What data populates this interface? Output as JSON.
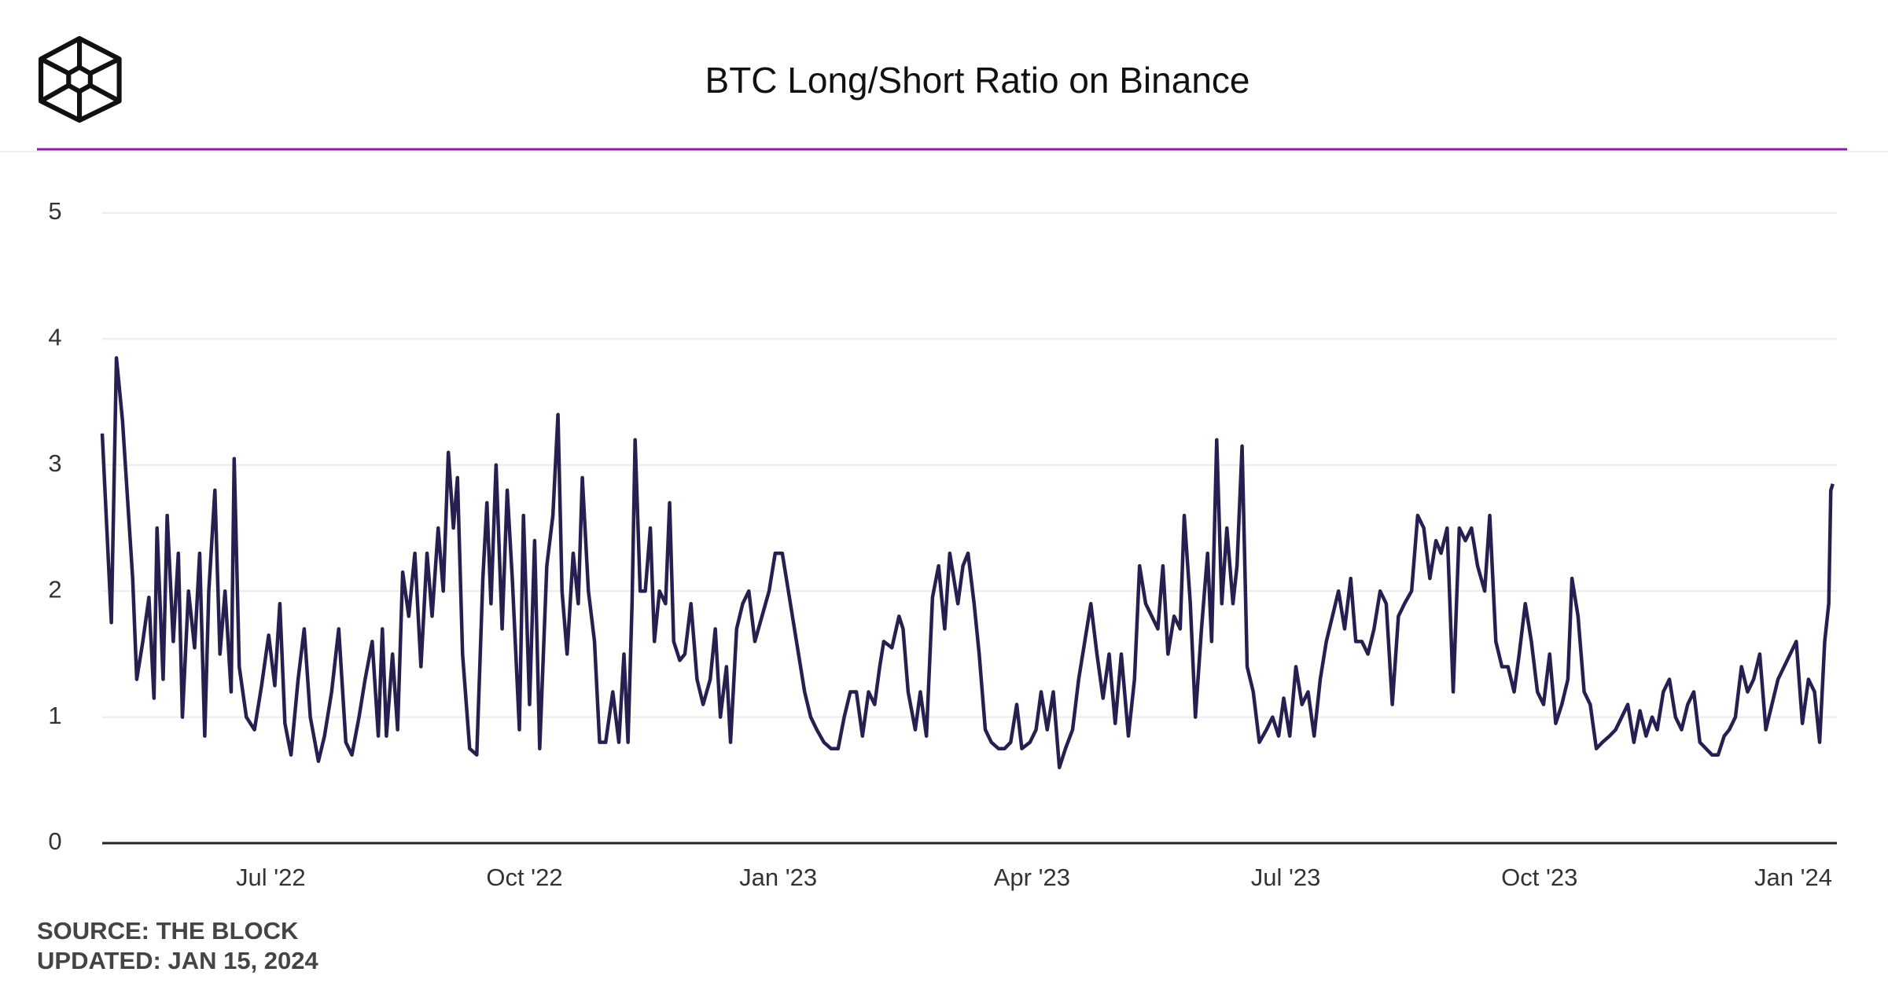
{
  "chart_data": {
    "type": "line",
    "title": "BTC Long/Short Ratio on Binance",
    "notes": [
      "SOURCE: THE BLOCK",
      "UPDATED: JAN 15, 2024"
    ],
    "color": "#25204f",
    "grid": true,
    "xlim": [
      2022.334,
      2024.043
    ],
    "xticks": [
      {
        "value": 2022.5,
        "label": "Jul '22"
      },
      {
        "value": 2022.75,
        "label": "Oct '22"
      },
      {
        "value": 2023.0,
        "label": "Jan '23"
      },
      {
        "value": 2023.25,
        "label": "Apr '23"
      },
      {
        "value": 2023.5,
        "label": "Jul '23"
      },
      {
        "value": 2023.75,
        "label": "Oct '23"
      },
      {
        "value": 2024.0,
        "label": "Jan '24"
      }
    ],
    "ylim": [
      0,
      5
    ],
    "yticks": [
      0,
      1,
      2,
      3,
      4,
      5
    ],
    "x": [
      2022.334,
      2022.343,
      2022.348,
      2022.354,
      2022.364,
      2022.368,
      2022.374,
      2022.38,
      2022.385,
      2022.388,
      2022.394,
      2022.398,
      2022.404,
      2022.409,
      2022.413,
      2022.419,
      2022.425,
      2022.43,
      2022.435,
      2022.439,
      2022.445,
      2022.45,
      2022.455,
      2022.461,
      2022.464,
      2022.469,
      2022.476,
      2022.484,
      2022.491,
      2022.498,
      2022.504,
      2022.509,
      2022.514,
      2022.52,
      2022.527,
      2022.533,
      2022.539,
      2022.547,
      2022.553,
      2022.56,
      2022.567,
      2022.574,
      2022.58,
      2022.587,
      2022.593,
      2022.6,
      2022.606,
      2022.61,
      2022.614,
      2022.62,
      2022.625,
      2022.63,
      2022.636,
      2022.642,
      2022.648,
      2022.654,
      2022.659,
      2022.665,
      2022.67,
      2022.675,
      2022.68,
      2022.684,
      2022.689,
      2022.696,
      2022.703,
      2022.709,
      2022.713,
      2022.717,
      2022.722,
      2022.728,
      2022.733,
      2022.738,
      2022.745,
      2022.749,
      2022.755,
      2022.76,
      2022.765,
      2022.772,
      2022.778,
      2022.783,
      2022.787,
      2022.792,
      2022.798,
      2022.803,
      2022.807,
      2022.813,
      2022.819,
      2022.824,
      2022.83,
      2022.837,
      2022.843,
      2022.848,
      2022.852,
      2022.856,
      2022.859,
      2022.864,
      2022.869,
      2022.874,
      2022.878,
      2022.883,
      2022.889,
      2022.893,
      2022.897,
      2022.903,
      2022.908,
      2022.914,
      2022.92,
      2022.926,
      2022.933,
      2022.938,
      2022.943,
      2022.949,
      2022.953,
      2022.959,
      2022.965,
      2022.971,
      2022.977,
      2022.984,
      2022.991,
      2022.997,
      2023.004,
      2023.01,
      2023.016,
      2023.02,
      2023.026,
      2023.032,
      2023.038,
      2023.045,
      2023.052,
      2023.059,
      2023.065,
      2023.071,
      2023.077,
      2023.083,
      2023.089,
      2023.095,
      2023.1,
      2023.104,
      2023.112,
      2023.119,
      2023.123,
      2023.128,
      2023.135,
      2023.14,
      2023.146,
      2023.152,
      2023.158,
      2023.164,
      2023.169,
      2023.177,
      2023.182,
      2023.187,
      2023.193,
      2023.198,
      2023.204,
      2023.21,
      2023.217,
      2023.223,
      2023.229,
      2023.235,
      2023.24,
      2023.248,
      2023.254,
      2023.259,
      2023.265,
      2023.271,
      2023.277,
      2023.283,
      2023.29,
      2023.296,
      2023.302,
      2023.308,
      2023.314,
      2023.32,
      2023.326,
      2023.332,
      2023.338,
      2023.345,
      2023.351,
      2023.356,
      2023.362,
      2023.368,
      2023.374,
      2023.379,
      2023.384,
      2023.39,
      2023.396,
      2023.4,
      2023.406,
      2023.411,
      2023.417,
      2023.423,
      2023.427,
      2023.432,
      2023.437,
      2023.442,
      2023.448,
      2023.452,
      2023.457,
      2023.462,
      2023.468,
      2023.474,
      2023.481,
      2023.487,
      2023.493,
      2023.498,
      2023.504,
      2023.51,
      2023.516,
      2023.522,
      2023.528,
      2023.534,
      2023.54,
      2023.546,
      2023.552,
      2023.558,
      2023.564,
      2023.569,
      2023.575,
      2023.581,
      2023.587,
      2023.593,
      2023.599,
      2023.605,
      2023.611,
      2023.617,
      2023.624,
      2023.63,
      2023.636,
      2023.642,
      2023.648,
      2023.653,
      2023.659,
      2023.665,
      2023.671,
      2023.677,
      2023.683,
      2023.689,
      2023.696,
      2023.701,
      2023.707,
      2023.713,
      2023.719,
      2023.725,
      2023.73,
      2023.736,
      2023.742,
      2023.748,
      2023.754,
      2023.76,
      2023.766,
      2023.772,
      2023.778,
      2023.782,
      2023.788,
      2023.794,
      2023.8,
      2023.806,
      2023.812,
      2023.819,
      2023.825,
      2023.831,
      2023.837,
      2023.843,
      2023.849,
      2023.855,
      2023.861,
      2023.866,
      2023.872,
      2023.878,
      2023.884,
      2023.89,
      2023.896,
      2023.902,
      2023.908,
      2023.914,
      2023.92,
      2023.926,
      2023.932,
      2023.937,
      2023.943,
      2023.949,
      2023.955,
      2023.961,
      2023.967,
      2023.973,
      2023.979,
      2023.985,
      2023.991,
      2023.997,
      2024.003,
      2024.009,
      2024.015,
      2024.021,
      2024.026,
      2024.031,
      2024.035,
      2024.037,
      2024.039
    ],
    "values": [
      3.25,
      1.75,
      3.85,
      3.35,
      2.1,
      1.3,
      1.6,
      1.95,
      1.15,
      2.5,
      1.3,
      2.6,
      1.6,
      2.3,
      1.0,
      2.0,
      1.55,
      2.3,
      0.85,
      2.0,
      2.8,
      1.5,
      2.0,
      1.2,
      3.05,
      1.4,
      1.0,
      0.9,
      1.25,
      1.65,
      1.25,
      1.9,
      0.95,
      0.7,
      1.3,
      1.7,
      1.0,
      0.65,
      0.85,
      1.2,
      1.7,
      0.8,
      0.7,
      1.0,
      1.3,
      1.6,
      0.85,
      1.7,
      0.85,
      1.5,
      0.9,
      2.15,
      1.8,
      2.3,
      1.4,
      2.3,
      1.8,
      2.5,
      2.0,
      3.1,
      2.5,
      2.9,
      1.5,
      0.75,
      0.7,
      2.1,
      2.7,
      1.9,
      3.0,
      1.7,
      2.8,
      2.1,
      0.9,
      2.6,
      1.1,
      2.4,
      0.75,
      2.2,
      2.6,
      3.4,
      2.0,
      1.5,
      2.3,
      1.9,
      2.9,
      2.0,
      1.6,
      0.8,
      0.8,
      1.2,
      0.8,
      1.5,
      0.8,
      1.9,
      3.2,
      2.0,
      2.0,
      2.5,
      1.6,
      2.0,
      1.9,
      2.7,
      1.6,
      1.45,
      1.5,
      1.9,
      1.3,
      1.1,
      1.3,
      1.7,
      1.0,
      1.4,
      0.8,
      1.7,
      1.9,
      2.0,
      1.6,
      1.8,
      2.0,
      2.3,
      2.3,
      2.0,
      1.7,
      1.5,
      1.2,
      1.0,
      0.9,
      0.8,
      0.75,
      0.75,
      1.0,
      1.2,
      1.2,
      0.85,
      1.2,
      1.1,
      1.4,
      1.6,
      1.55,
      1.8,
      1.7,
      1.2,
      0.9,
      1.2,
      0.85,
      1.95,
      2.2,
      1.7,
      2.3,
      1.9,
      2.2,
      2.3,
      1.9,
      1.5,
      0.9,
      0.8,
      0.75,
      0.75,
      0.8,
      1.1,
      0.75,
      0.8,
      0.9,
      1.2,
      0.9,
      1.2,
      0.6,
      0.75,
      0.9,
      1.3,
      1.6,
      1.9,
      1.5,
      1.15,
      1.5,
      0.95,
      1.5,
      0.85,
      1.3,
      2.2,
      1.9,
      1.8,
      1.7,
      2.2,
      1.5,
      1.8,
      1.7,
      2.6,
      1.9,
      1.0,
      1.7,
      2.3,
      1.6,
      3.2,
      1.9,
      2.5,
      1.9,
      2.2,
      3.15,
      1.4,
      1.2,
      0.8,
      0.9,
      1.0,
      0.85,
      1.15,
      0.85,
      1.4,
      1.1,
      1.2,
      0.85,
      1.3,
      1.6,
      1.8,
      2.0,
      1.7,
      2.1,
      1.6,
      1.6,
      1.5,
      1.7,
      2.0,
      1.9,
      1.1,
      1.8,
      1.9,
      2.0,
      2.6,
      2.5,
      2.1,
      2.4,
      2.3,
      2.5,
      1.2,
      2.5,
      2.4,
      2.5,
      2.2,
      2.0,
      2.6,
      1.6,
      1.4,
      1.4,
      1.2,
      1.5,
      1.9,
      1.6,
      1.2,
      1.1,
      1.5,
      0.95,
      1.1,
      1.3,
      2.1,
      1.8,
      1.2,
      1.1,
      0.75,
      0.8,
      0.85,
      0.9,
      1.0,
      1.1,
      0.8,
      1.05,
      0.85,
      1.0,
      0.9,
      1.2,
      1.3,
      1.0,
      0.9,
      1.1,
      1.2,
      0.8,
      0.75,
      0.7,
      0.7,
      0.85,
      0.9,
      1.0,
      1.4,
      1.2,
      1.3,
      1.5,
      0.9,
      1.1,
      1.3,
      1.4,
      1.5,
      1.6,
      0.95,
      1.3,
      1.2,
      0.8,
      1.6,
      1.9,
      2.8,
      2.85
    ]
  }
}
